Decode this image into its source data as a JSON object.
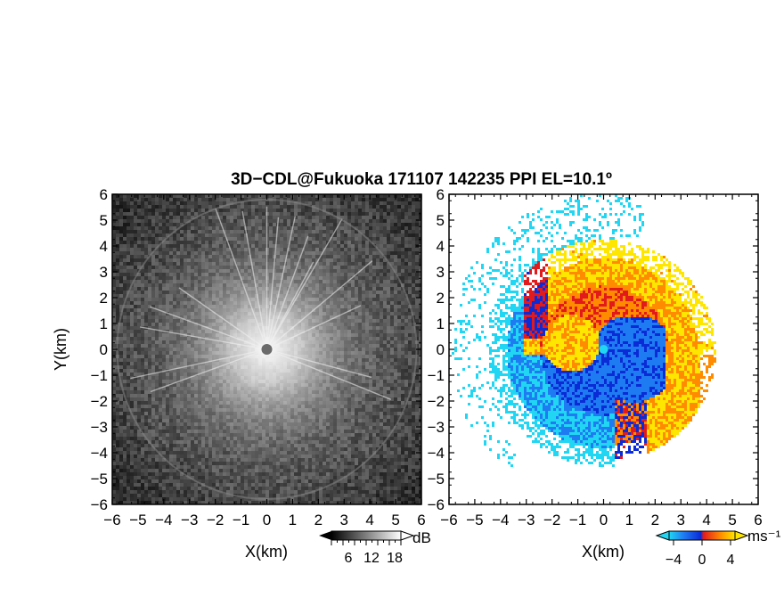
{
  "title": "3D−CDL@Fukuoka 171107 142235 PPI EL=10.1º",
  "colors": {
    "velocity_neg_light": "#21d6f2",
    "velocity_neg_mid": "#1f7bf2",
    "velocity_neg_dark": "#0a2bd6",
    "velocity_pos_dark": "#e31a1c",
    "velocity_pos_mid": "#ff8c00",
    "velocity_pos_light": "#ffe600",
    "frame": "#000000"
  },
  "panels": [
    {
      "name": "reflectivity",
      "xlabel": "X(km)",
      "ylabel": "Y(km)",
      "colorbar": {
        "unit": "dB",
        "ticks": [
          "6",
          "12",
          "18"
        ]
      }
    },
    {
      "name": "doppler-velocity",
      "xlabel": "X(km)",
      "ylabel": "",
      "colorbar": {
        "unit": "ms⁻¹",
        "ticks": [
          "−4",
          "0",
          "4"
        ]
      }
    }
  ],
  "chart_data": [
    {
      "type": "heatmap",
      "title": "3D−CDL@Fukuoka 171107 142235 PPI EL=10.1º",
      "xlabel": "X(km)",
      "ylabel": "Y(km)",
      "xlim": [
        -6,
        6
      ],
      "ylim": [
        -6,
        6
      ],
      "xticks": [
        "−6",
        "−5",
        "−4",
        "−3",
        "−2",
        "−1",
        "0",
        "1",
        "2",
        "3",
        "4",
        "5",
        "6"
      ],
      "yticks": [
        "6",
        "5",
        "4",
        "3",
        "2",
        "1",
        "0",
        "−1",
        "−2",
        "−3",
        "−4",
        "−5",
        "−6"
      ],
      "colorbar_unit": "dB",
      "colorbar_range": [
        3,
        21
      ],
      "colorbar_ticks": [
        6,
        12,
        18
      ],
      "colormap": "grayscale"
    },
    {
      "type": "heatmap",
      "xlabel": "X(km)",
      "ylabel": "",
      "xlim": [
        -6,
        6
      ],
      "ylim": [
        -6,
        6
      ],
      "xticks": [
        "−6",
        "−5",
        "−4",
        "−3",
        "−2",
        "−1",
        "0",
        "1",
        "2",
        "3",
        "4",
        "5",
        "6"
      ],
      "yticks": [
        "6",
        "5",
        "4",
        "3",
        "2",
        "1",
        "0",
        "−1",
        "−2",
        "−3",
        "−4",
        "−5",
        "−6"
      ],
      "colorbar_unit": "ms⁻¹",
      "colorbar_range": [
        -6,
        6
      ],
      "colorbar_ticks": [
        -4,
        0,
        4
      ],
      "colormap": "cyan-blue-red-orange-yellow"
    }
  ]
}
